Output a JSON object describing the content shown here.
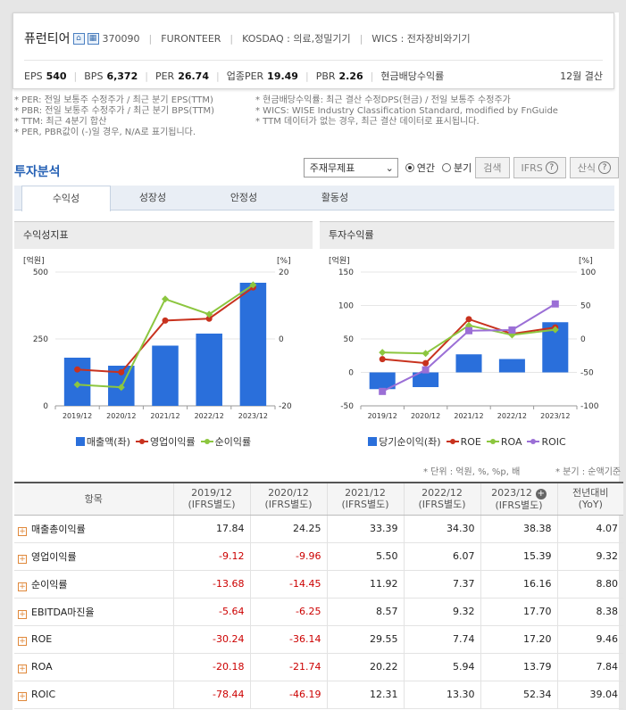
{
  "company": {
    "name": "퓨런티어",
    "code": "370090",
    "eng_name": "FURONTEER",
    "market": "KOSDAQ : 의료,정밀기기",
    "wics": "WICS : 전자장비와기기",
    "icon1": "home-icon",
    "icon2": "building-icon"
  },
  "metrics": {
    "eps_label": "EPS",
    "eps": "540",
    "bps_label": "BPS",
    "bps": "6,372",
    "per_label": "PER",
    "per": "26.74",
    "ind_per_label": "업종PER",
    "ind_per": "19.49",
    "pbr_label": "PBR",
    "pbr": "2.26",
    "div_label": "현금배당수익률",
    "settle": "12월 결산"
  },
  "notes": {
    "left": [
      "* PER: 전일 보통주 수정주가 / 최근 분기 EPS(TTM)",
      "* PBR: 전일 보통주 수정주가 / 최근 분기 BPS(TTM)",
      "* TTM: 최근 4분기 합산",
      "* PER, PBR값이 (-)일 경우, N/A로 표기됩니다."
    ],
    "right": [
      "* 현금배당수익률: 최근 결산 수정DPS(현금) / 전일 보통주 수정주가",
      "* WICS: WISE Industry Classification Standard, modified by FnGuide",
      "* TTM 데이터가 없는 경우, 최근 결산 데이터로 표시됩니다."
    ]
  },
  "section": {
    "title": "투자분석",
    "select_value": "주재무제표",
    "radio_annual": "연간",
    "radio_quarter": "분기",
    "search_btn": "검색",
    "ifrs_btn": "IFRS",
    "formula_btn": "산식"
  },
  "tabs": [
    "수익성",
    "성장성",
    "안정성",
    "활동성"
  ],
  "chart_left_title": "수익성지표",
  "chart_right_title": "투자수익률",
  "chart_data": [
    {
      "type": "bar",
      "title": "수익성지표",
      "categories": [
        "2019/12",
        "2020/12",
        "2021/12",
        "2022/12",
        "2023/12"
      ],
      "left_unit": "[억원]",
      "right_unit": "[%]",
      "left_ylim": [
        0,
        500
      ],
      "left_ticks": [
        0,
        250,
        500
      ],
      "right_ylim": [
        -20,
        20
      ],
      "right_ticks": [
        -20,
        0,
        20
      ],
      "series": [
        {
          "name": "매출액(좌)",
          "type": "bar",
          "axis": "left",
          "color": "#2a6fdb",
          "values": [
            180,
            150,
            225,
            270,
            460
          ]
        },
        {
          "name": "영업이익률",
          "type": "line",
          "axis": "right",
          "color": "#c8321e",
          "values": [
            -9.12,
            -9.96,
            5.5,
            6.07,
            15.39
          ]
        },
        {
          "name": "순이익률",
          "type": "line",
          "axis": "right",
          "color": "#8cc63f",
          "values": [
            -13.68,
            -14.45,
            11.92,
            7.37,
            16.16
          ]
        }
      ]
    },
    {
      "type": "bar",
      "title": "투자수익률",
      "categories": [
        "2019/12",
        "2020/12",
        "2021/12",
        "2022/12",
        "2023/12"
      ],
      "left_unit": "[억원]",
      "right_unit": "[%]",
      "left_ylim": [
        -50,
        150
      ],
      "left_ticks": [
        -50,
        0,
        50,
        100,
        150
      ],
      "right_ylim": [
        -100,
        100
      ],
      "right_ticks": [
        -100,
        -50,
        0,
        50,
        100
      ],
      "series": [
        {
          "name": "당기순이익(좌)",
          "type": "bar",
          "axis": "left",
          "color": "#2a6fdb",
          "values": [
            -25,
            -22,
            27,
            20,
            75
          ]
        },
        {
          "name": "ROE",
          "type": "line",
          "axis": "right",
          "color": "#c8321e",
          "values": [
            -30.24,
            -36.14,
            29.55,
            7.74,
            17.2
          ]
        },
        {
          "name": "ROA",
          "type": "line",
          "axis": "right",
          "color": "#8cc63f",
          "values": [
            -20.18,
            -21.74,
            20.22,
            5.94,
            13.79
          ]
        },
        {
          "name": "ROIC",
          "type": "line",
          "axis": "right",
          "color": "#9b6fd6",
          "marker": "square",
          "values": [
            -78.44,
            -46.19,
            12.31,
            13.3,
            52.34
          ]
        }
      ]
    }
  ],
  "units": {
    "unit": "* 단위 : 억원, %, %p, 배",
    "quarter": "* 분기 : 순액기준"
  },
  "table": {
    "headers": [
      "항목",
      "2019/12\n(IFRS별도)",
      "2020/12\n(IFRS별도)",
      "2021/12\n(IFRS별도)",
      "2022/12\n(IFRS별도)",
      "2023/12\n(IFRS별도)",
      "전년대비\n(YoY)"
    ],
    "rows": [
      {
        "label": "매출총이익률",
        "values": [
          "17.84",
          "24.25",
          "33.39",
          "34.30",
          "38.38",
          "4.07"
        ]
      },
      {
        "label": "영업이익률",
        "values": [
          "-9.12",
          "-9.96",
          "5.50",
          "6.07",
          "15.39",
          "9.32"
        ]
      },
      {
        "label": "순이익률",
        "values": [
          "-13.68",
          "-14.45",
          "11.92",
          "7.37",
          "16.16",
          "8.80"
        ]
      },
      {
        "label": "EBITDA마진율",
        "values": [
          "-5.64",
          "-6.25",
          "8.57",
          "9.32",
          "17.70",
          "8.38"
        ]
      },
      {
        "label": "ROE",
        "values": [
          "-30.24",
          "-36.14",
          "29.55",
          "7.74",
          "17.20",
          "9.46"
        ]
      },
      {
        "label": "ROA",
        "values": [
          "-20.18",
          "-21.74",
          "20.22",
          "5.94",
          "13.79",
          "7.84"
        ]
      },
      {
        "label": "ROIC",
        "values": [
          "-78.44",
          "-46.19",
          "12.31",
          "13.30",
          "52.34",
          "39.04"
        ]
      }
    ]
  }
}
